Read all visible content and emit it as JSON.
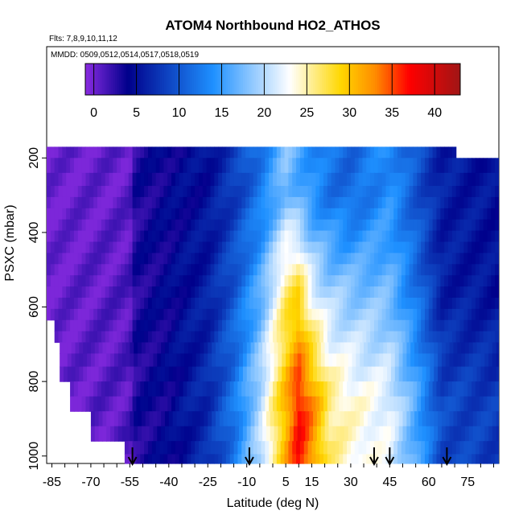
{
  "chart_data": {
    "type": "heatmap",
    "title": "ATOM4 Northbound HO2_ATHOS",
    "flights_note": "Flts: 7,8,9,10,11,12",
    "dates_note": "MMDD: 0509,0512,0514,0517,0518,0519",
    "xlabel": "Latitude (deg N)",
    "ylabel": "PSXC (mbar)",
    "xlim": [
      -87,
      87
    ],
    "ylim": [
      1020,
      100
    ],
    "x_ticks": [
      -85,
      -70,
      -55,
      -40,
      -25,
      -10,
      5,
      15,
      30,
      45,
      60,
      75
    ],
    "y_ticks": [
      200,
      400,
      600,
      800,
      1000
    ],
    "colorbar": {
      "range": [
        -1,
        43
      ],
      "ticks": [
        0,
        5,
        10,
        15,
        20,
        25,
        30,
        35,
        40
      ],
      "colors": [
        "#8a2be2",
        "#00008b",
        "#1e90ff",
        "#ffffff",
        "#ffd700",
        "#ff8c00",
        "#ff0000",
        "#a01515"
      ],
      "color_stops": [
        -1,
        4,
        14,
        23,
        29,
        33,
        37,
        43
      ]
    },
    "profile_markers_lat": [
      -54,
      -9,
      39,
      45,
      67
    ],
    "pressure_levels_mbar": [
      180,
      220,
      260,
      290,
      320,
      350,
      380,
      410,
      440,
      470,
      500,
      530,
      560,
      590,
      620,
      650,
      680,
      710,
      740,
      780,
      820,
      860,
      900,
      940,
      980,
      1010
    ],
    "ho2_pptv_summary": {
      "lat_nodes": [
        -87,
        -55,
        -53,
        -40,
        -25,
        -15,
        -5,
        5,
        10,
        15,
        22,
        30,
        45,
        55,
        65,
        87
      ],
      "upper_troposphere_200_400": [
        0,
        0.5,
        3,
        4,
        5,
        8,
        12,
        18,
        16,
        14,
        12,
        11,
        14,
        10,
        6,
        5
      ],
      "mid_troposphere_400_700": [
        0,
        1,
        3,
        4,
        6,
        10,
        16,
        26,
        28,
        22,
        19,
        18,
        17,
        12,
        6,
        5
      ],
      "lower_troposphere_700_1000": [
        0,
        1,
        3,
        4,
        7,
        12,
        20,
        31,
        37,
        33,
        26,
        24,
        22,
        16,
        9,
        8
      ]
    }
  }
}
